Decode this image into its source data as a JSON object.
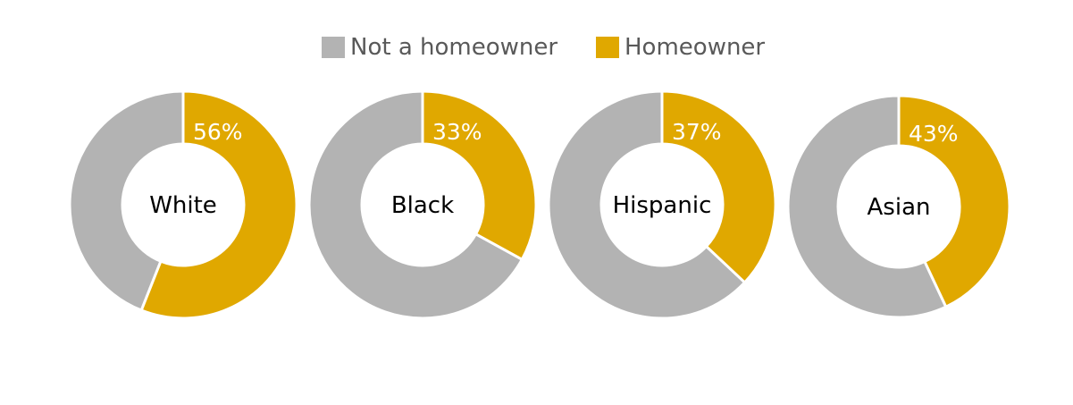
{
  "legend": {
    "items": [
      {
        "label": "Not a homeowner",
        "color": "#b3b3b3"
      },
      {
        "label": "Homeowner",
        "color": "#e0a800"
      }
    ]
  },
  "chart_data": {
    "type": "pie",
    "variant": "donut",
    "legend_position": "top-center",
    "series_names": [
      "Not a homeowner",
      "Homeowner"
    ],
    "charts": [
      {
        "label": "White",
        "homeowner_pct": 56,
        "homeowner_label": "56%"
      },
      {
        "label": "Black",
        "homeowner_pct": 33,
        "homeowner_label": "33%"
      },
      {
        "label": "Hispanic",
        "homeowner_pct": 37,
        "homeowner_label": "37%"
      },
      {
        "label": "Asian",
        "homeowner_pct": 43,
        "homeowner_label": "43%"
      }
    ]
  }
}
